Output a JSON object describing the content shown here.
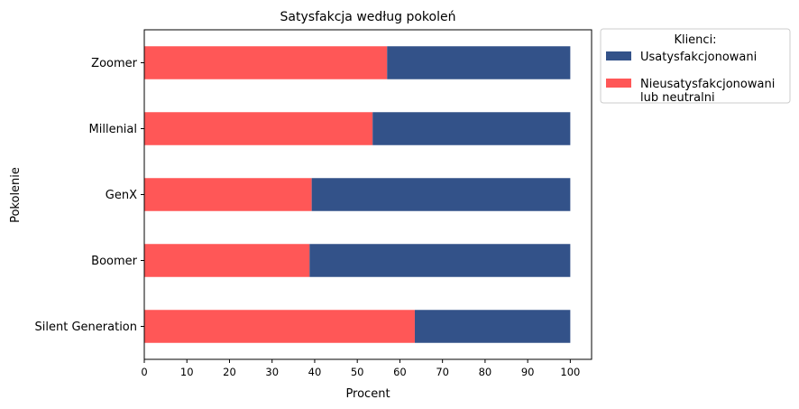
{
  "chart_data": {
    "type": "bar",
    "orientation": "horizontal",
    "stacked": true,
    "title": "Satysfakcja według pokoleń",
    "xlabel": "Procent",
    "ylabel": "Pokolenie",
    "xlim": [
      0,
      105
    ],
    "xticks": [
      0,
      10,
      20,
      30,
      40,
      50,
      60,
      70,
      80,
      90,
      100
    ],
    "categories": [
      "Silent Generation",
      "Boomer",
      "GenX",
      "Millenial",
      "Zoomer"
    ],
    "series": [
      {
        "name": "Nieusatysfakcjonowani lub neutralni",
        "name_lines": [
          "Nieusatysfakcjonowani",
          "lub neutralni"
        ],
        "color": "#ff5757",
        "values": [
          63.5,
          38.8,
          39.3,
          53.6,
          57.0
        ]
      },
      {
        "name": "Usatysfakcjonowani",
        "name_lines": [
          "Usatysfakcjonowani"
        ],
        "color": "#335289",
        "values": [
          36.5,
          61.2,
          60.7,
          46.4,
          43.0
        ]
      }
    ],
    "legend": {
      "title": "Klienci:",
      "placement": "outside-upper-right",
      "order": [
        "Usatysfakcjonowani",
        "Nieusatysfakcjonowani lub neutralni"
      ]
    },
    "grid": false
  }
}
